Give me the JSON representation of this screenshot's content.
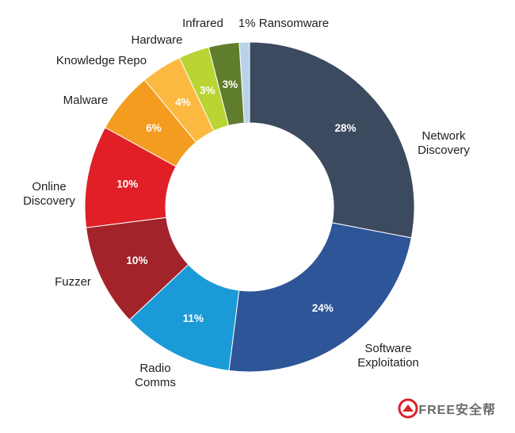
{
  "chart_data": {
    "type": "pie",
    "title": "",
    "legend": "none",
    "slices": [
      {
        "label": "Network\nDiscovery",
        "value": 28,
        "display": "28%",
        "color": "#3c4a5f"
      },
      {
        "label": "Software\nExploitation",
        "value": 24,
        "display": "24%",
        "color": "#2e5597"
      },
      {
        "label": "Radio\nComms",
        "value": 11,
        "display": "11%",
        "color": "#1a9bd7"
      },
      {
        "label": "Fuzzer",
        "value": 10,
        "display": "10%",
        "color": "#a3232a"
      },
      {
        "label": "Online\nDiscovery",
        "value": 10,
        "display": "10%",
        "color": "#e01f26"
      },
      {
        "label": "Malware",
        "value": 6,
        "display": "6%",
        "color": "#f39c1f"
      },
      {
        "label": "Knowledge Repo",
        "value": 4,
        "display": "4%",
        "color": "#fbb941"
      },
      {
        "label": "Hardware",
        "value": 3,
        "display": "3%",
        "color": "#b9d433"
      },
      {
        "label": "Infrared",
        "value": 3,
        "display": "3%",
        "color": "#5f7d2c"
      },
      {
        "label": "Ransomware",
        "value": 1,
        "display": "1%",
        "color": "#b9d2ea"
      }
    ]
  },
  "watermark": {
    "text": "FREE安全帮"
  }
}
